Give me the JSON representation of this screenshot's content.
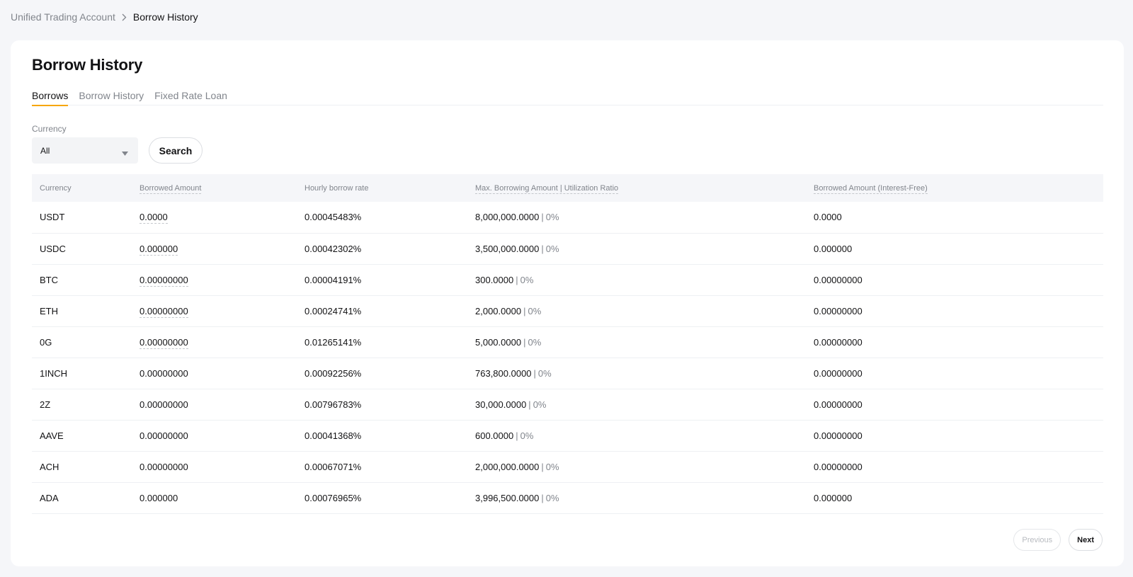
{
  "breadcrumb": {
    "parent": "Unified Trading Account",
    "current": "Borrow History"
  },
  "title": "Borrow History",
  "tabs": [
    {
      "label": "Borrows",
      "active": true
    },
    {
      "label": "Borrow History",
      "active": false
    },
    {
      "label": "Fixed Rate Loan",
      "active": false
    }
  ],
  "filter": {
    "label": "Currency",
    "value": "All",
    "search_label": "Search"
  },
  "table": {
    "headers": [
      "Currency",
      "Borrowed Amount",
      "Hourly borrow rate",
      "Max. Borrowing Amount | Utilization Ratio",
      "Borrowed Amount (Interest-Free)"
    ],
    "rows": [
      {
        "currency": "USDT",
        "borrowed": "0.0000",
        "rate": "0.00045483%",
        "max": "8,000,000.0000",
        "ratio": "0%",
        "free": "0.0000",
        "dashed": true
      },
      {
        "currency": "USDC",
        "borrowed": "0.000000",
        "rate": "0.00042302%",
        "max": "3,500,000.0000",
        "ratio": "0%",
        "free": "0.000000",
        "dashed": true
      },
      {
        "currency": "BTC",
        "borrowed": "0.00000000",
        "rate": "0.00004191%",
        "max": "300.0000",
        "ratio": "0%",
        "free": "0.00000000",
        "dashed": true
      },
      {
        "currency": "ETH",
        "borrowed": "0.00000000",
        "rate": "0.00024741%",
        "max": "2,000.0000",
        "ratio": "0%",
        "free": "0.00000000",
        "dashed": true
      },
      {
        "currency": "0G",
        "borrowed": "0.00000000",
        "rate": "0.01265141%",
        "max": "5,000.0000",
        "ratio": "0%",
        "free": "0.00000000",
        "dashed": true
      },
      {
        "currency": "1INCH",
        "borrowed": "0.00000000",
        "rate": "0.00092256%",
        "max": "763,800.0000",
        "ratio": "0%",
        "free": "0.00000000",
        "dashed": false
      },
      {
        "currency": "2Z",
        "borrowed": "0.00000000",
        "rate": "0.00796783%",
        "max": "30,000.0000",
        "ratio": "0%",
        "free": "0.00000000",
        "dashed": false
      },
      {
        "currency": "AAVE",
        "borrowed": "0.00000000",
        "rate": "0.00041368%",
        "max": "600.0000",
        "ratio": "0%",
        "free": "0.00000000",
        "dashed": false
      },
      {
        "currency": "ACH",
        "borrowed": "0.00000000",
        "rate": "0.00067071%",
        "max": "2,000,000.0000",
        "ratio": "0%",
        "free": "0.00000000",
        "dashed": false
      },
      {
        "currency": "ADA",
        "borrowed": "0.000000",
        "rate": "0.00076965%",
        "max": "3,996,500.0000",
        "ratio": "0%",
        "free": "0.000000",
        "dashed": false
      }
    ]
  },
  "pagination": {
    "previous": "Previous",
    "next": "Next"
  },
  "icons": {
    "breadcrumb_separator": "chevron-right-icon",
    "select_caret": "caret-down-icon"
  },
  "colors": {
    "accent": "#f7a600",
    "muted": "#81858c",
    "text": "#121214"
  }
}
